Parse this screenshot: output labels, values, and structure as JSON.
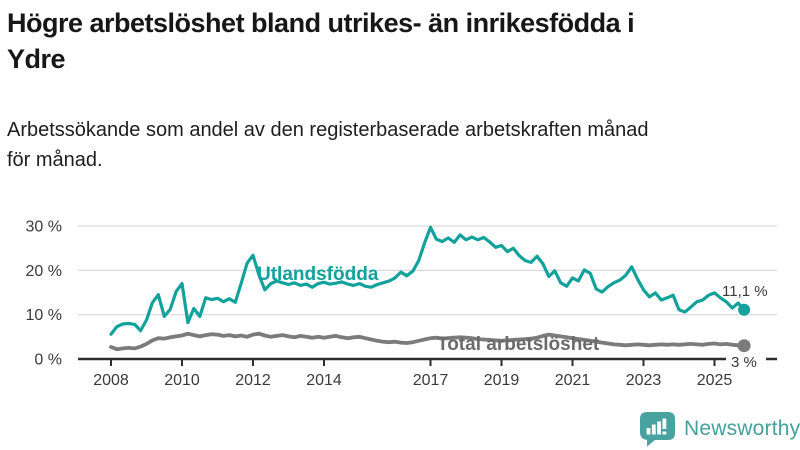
{
  "header": {
    "title_lines": [
      "Högre arbetslöshet bland utrikes- än inrikesfödda i",
      "Ydre"
    ],
    "subtitle_lines": [
      "Arbetssökande som andel av den registerbaserade arbetskraften månad",
      "för månad."
    ]
  },
  "footer": {
    "brand": "Newsworthy",
    "logo_icon": "bar-chart-speech-bubble-icon"
  },
  "colors": {
    "teal_line": "#12a19b",
    "gray_line": "#7b7b7b",
    "brand_teal": "#43a09d",
    "axis_text": "#3a3a3a",
    "gridline": "#dadada"
  },
  "chart_data": {
    "type": "line",
    "title": "Högre arbetslöshet bland utrikes- än inrikesfödda i Ydre",
    "subtitle": "Arbetssökande som andel av den registerbaserade arbetskraften månad för månad.",
    "unit": "%",
    "x_start_year": 2008,
    "points_per_year": 6,
    "x_tick_years": [
      2008,
      2010,
      2012,
      2014,
      2017,
      2019,
      2021,
      2023,
      2025
    ],
    "y_ticks": [
      0,
      10,
      20,
      30
    ],
    "y_tick_suffix": " %",
    "ylim": [
      0,
      32
    ],
    "grid": true,
    "legend_position": "inline-labels",
    "series": [
      {
        "name": "Utlandsfödda",
        "color": "#12a19b",
        "end_label": "11,1 %",
        "end_value": 11.1,
        "values": [
          5.6,
          7.3,
          7.9,
          8.0,
          7.8,
          6.4,
          8.8,
          12.7,
          14.5,
          9.6,
          11.2,
          15.2,
          17.0,
          8.2,
          11.4,
          9.6,
          13.8,
          13.4,
          13.7,
          12.9,
          13.6,
          12.8,
          17.1,
          21.6,
          23.4,
          19.0,
          15.6,
          17.0,
          17.6,
          17.2,
          16.8,
          17.2,
          16.6,
          16.9,
          16.2,
          17.0,
          17.3,
          16.9,
          17.1,
          17.4,
          16.9,
          16.6,
          17.0,
          16.4,
          16.2,
          16.8,
          17.2,
          17.6,
          18.3,
          19.6,
          18.8,
          19.8,
          22.2,
          26.2,
          29.7,
          27.0,
          26.5,
          27.3,
          26.3,
          28.0,
          26.9,
          27.5,
          26.9,
          27.4,
          26.4,
          25.2,
          25.6,
          24.2,
          25.0,
          23.3,
          22.2,
          21.8,
          23.2,
          21.5,
          18.6,
          19.9,
          17.2,
          16.4,
          18.3,
          17.6,
          20.1,
          19.3,
          15.8,
          15.1,
          16.3,
          17.2,
          17.8,
          18.9,
          20.8,
          18.0,
          15.6,
          14.0,
          14.9,
          13.3,
          13.8,
          14.4,
          11.1,
          10.6,
          11.7,
          12.9,
          13.3,
          14.4,
          14.9,
          13.8,
          12.9,
          11.5,
          12.6,
          11.1
        ]
      },
      {
        "name": "Total arbetslöshet",
        "color": "#7b7b7b",
        "end_label": "3 %",
        "end_value": 3.0,
        "values": [
          2.7,
          2.2,
          2.4,
          2.5,
          2.4,
          2.8,
          3.4,
          4.2,
          4.7,
          4.6,
          4.9,
          5.1,
          5.3,
          5.7,
          5.4,
          5.1,
          5.4,
          5.6,
          5.5,
          5.2,
          5.4,
          5.1,
          5.3,
          5.0,
          5.5,
          5.7,
          5.3,
          5.0,
          5.2,
          5.4,
          5.1,
          4.9,
          5.2,
          5.0,
          4.8,
          5.0,
          4.8,
          5.0,
          5.2,
          4.9,
          4.7,
          4.9,
          5.0,
          4.7,
          4.4,
          4.1,
          3.9,
          3.8,
          3.9,
          3.7,
          3.6,
          3.8,
          4.1,
          4.4,
          4.7,
          4.8,
          4.6,
          4.7,
          4.8,
          4.9,
          4.8,
          4.7,
          4.5,
          4.4,
          4.3,
          4.2,
          4.1,
          4.2,
          4.3,
          4.4,
          4.5,
          4.6,
          4.8,
          5.2,
          5.5,
          5.3,
          5.1,
          4.9,
          4.7,
          4.5,
          4.3,
          4.1,
          3.9,
          3.7,
          3.5,
          3.3,
          3.2,
          3.1,
          3.2,
          3.3,
          3.2,
          3.1,
          3.2,
          3.3,
          3.2,
          3.3,
          3.2,
          3.3,
          3.4,
          3.3,
          3.2,
          3.4,
          3.5,
          3.3,
          3.4,
          3.2,
          3.1,
          3.0
        ]
      }
    ]
  }
}
